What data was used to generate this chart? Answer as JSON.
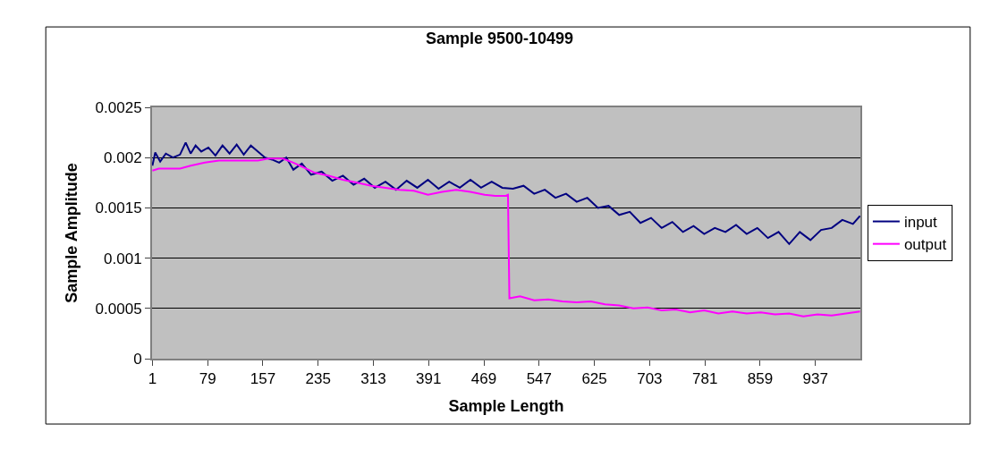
{
  "chart_data": {
    "type": "line",
    "title": "Sample 9500-10499",
    "xlabel": "Sample Length",
    "ylabel": "Sample Amplitude",
    "xlim": [
      0.5,
      1000.5
    ],
    "xticks": [
      1,
      79,
      157,
      235,
      313,
      391,
      469,
      547,
      625,
      703,
      781,
      859,
      937
    ],
    "ylim": [
      0,
      0.0025
    ],
    "yticks": [
      0,
      0.0005,
      0.001,
      0.0015,
      0.002,
      0.0025
    ],
    "grid": "y",
    "legend": "right",
    "marker": "none",
    "line_style": "solid",
    "series": [
      {
        "name": "input",
        "color": "#000080",
        "x": [
          1,
          5,
          12,
          20,
          30,
          40,
          48,
          55,
          62,
          70,
          80,
          90,
          100,
          110,
          120,
          130,
          140,
          150,
          160,
          170,
          180,
          190,
          200,
          212,
          225,
          240,
          255,
          270,
          285,
          300,
          315,
          330,
          345,
          360,
          375,
          390,
          405,
          420,
          435,
          450,
          465,
          480,
          495,
          510,
          525,
          540,
          555,
          570,
          585,
          600,
          615,
          630,
          645,
          660,
          675,
          690,
          705,
          720,
          735,
          750,
          765,
          780,
          795,
          810,
          825,
          840,
          855,
          870,
          885,
          900,
          915,
          930,
          945,
          960,
          975,
          990,
          1000
        ],
        "values": [
          0.00192,
          0.00205,
          0.00196,
          0.00204,
          0.002,
          0.00203,
          0.00215,
          0.00204,
          0.00212,
          0.00206,
          0.0021,
          0.00202,
          0.00212,
          0.00204,
          0.00213,
          0.00203,
          0.00212,
          0.00206,
          0.002,
          0.00198,
          0.00195,
          0.002,
          0.00188,
          0.00194,
          0.00183,
          0.00186,
          0.00177,
          0.00182,
          0.00173,
          0.00179,
          0.0017,
          0.00176,
          0.00168,
          0.00177,
          0.0017,
          0.00178,
          0.00169,
          0.00176,
          0.0017,
          0.00178,
          0.0017,
          0.00176,
          0.0017,
          0.00169,
          0.00172,
          0.00164,
          0.00168,
          0.0016,
          0.00164,
          0.00156,
          0.0016,
          0.0015,
          0.00152,
          0.00143,
          0.00146,
          0.00135,
          0.0014,
          0.0013,
          0.00136,
          0.00126,
          0.00132,
          0.00124,
          0.0013,
          0.00126,
          0.00133,
          0.00124,
          0.0013,
          0.0012,
          0.00126,
          0.00114,
          0.00126,
          0.00118,
          0.00128,
          0.0013,
          0.00138,
          0.00134,
          0.00142
        ]
      },
      {
        "name": "output",
        "color": "#ff00ff",
        "x": [
          1,
          10,
          40,
          55,
          75,
          95,
          150,
          165,
          185,
          200,
          215,
          230,
          250,
          270,
          290,
          310,
          330,
          350,
          370,
          390,
          410,
          430,
          450,
          470,
          485,
          500,
          503,
          505,
          520,
          540,
          560,
          580,
          600,
          620,
          640,
          660,
          680,
          700,
          720,
          740,
          760,
          780,
          800,
          820,
          840,
          860,
          880,
          900,
          920,
          940,
          960,
          980,
          1000
        ],
        "values": [
          0.00187,
          0.00189,
          0.00189,
          0.00192,
          0.00195,
          0.00197,
          0.00197,
          0.00199,
          0.00199,
          0.00195,
          0.0019,
          0.00185,
          0.00182,
          0.00178,
          0.00175,
          0.00172,
          0.0017,
          0.00168,
          0.00167,
          0.00163,
          0.00166,
          0.00168,
          0.00166,
          0.00163,
          0.00162,
          0.00162,
          0.00163,
          0.0006,
          0.00062,
          0.00058,
          0.00059,
          0.00057,
          0.00056,
          0.00057,
          0.00054,
          0.00053,
          0.0005,
          0.00051,
          0.00048,
          0.00049,
          0.00046,
          0.00048,
          0.00045,
          0.00047,
          0.00045,
          0.00046,
          0.00044,
          0.00045,
          0.00042,
          0.00044,
          0.00043,
          0.00045,
          0.00047
        ]
      }
    ]
  }
}
